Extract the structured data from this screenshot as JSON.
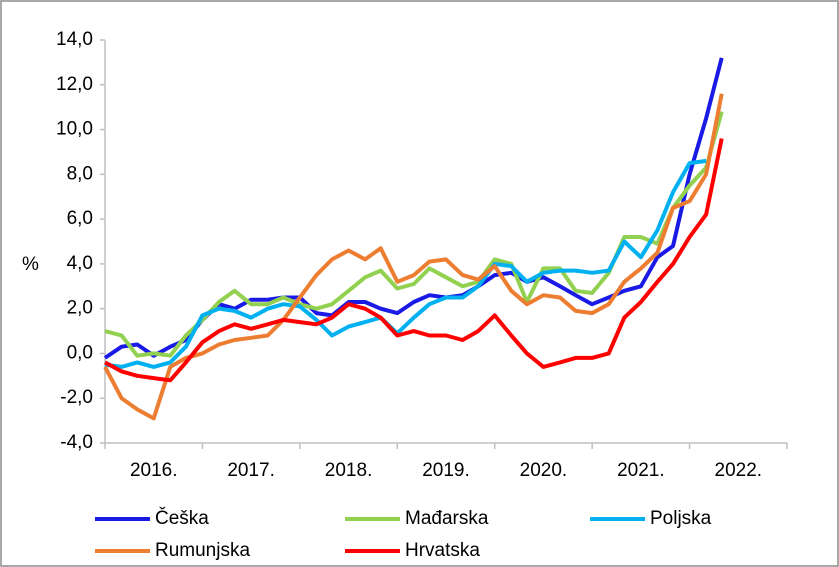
{
  "chart_data": {
    "type": "line",
    "ylabel": "%",
    "x": [
      2016,
      2016.17,
      2016.33,
      2016.5,
      2016.67,
      2016.83,
      2017,
      2017.17,
      2017.33,
      2017.5,
      2017.67,
      2017.83,
      2018,
      2018.17,
      2018.33,
      2018.5,
      2018.67,
      2018.83,
      2019,
      2019.17,
      2019.33,
      2019.5,
      2019.67,
      2019.83,
      2020,
      2020.17,
      2020.33,
      2020.5,
      2020.67,
      2020.83,
      2021,
      2021.17,
      2021.33,
      2021.5,
      2021.67,
      2021.83,
      2022,
      2022.17,
      2022.33
    ],
    "categories": [
      "2016.",
      "2017.",
      "2018.",
      "2019.",
      "2020.",
      "2021.",
      "2022."
    ],
    "xlim": [
      2016,
      2023
    ],
    "xticks": [
      2016,
      2017,
      2018,
      2019,
      2020,
      2021,
      2022,
      2023
    ],
    "ylim": [
      -4,
      14
    ],
    "yticks": [
      {
        "value": -4,
        "label": "-4,0"
      },
      {
        "value": -2,
        "label": "-2,0"
      },
      {
        "value": 0,
        "label": "0,0"
      },
      {
        "value": 2,
        "label": "2,0"
      },
      {
        "value": 4,
        "label": "4,0"
      },
      {
        "value": 6,
        "label": "6,0"
      },
      {
        "value": 8,
        "label": "8,0"
      },
      {
        "value": 10,
        "label": "10,0"
      },
      {
        "value": 12,
        "label": "12,0"
      },
      {
        "value": 14,
        "label": "14,0"
      }
    ],
    "series": [
      {
        "name": "Češka",
        "color": "#1a1ae6",
        "values": [
          -0.2,
          0.3,
          0.4,
          -0.1,
          0.3,
          0.6,
          1.5,
          2.2,
          2.0,
          2.4,
          2.4,
          2.5,
          2.5,
          1.8,
          1.7,
          2.3,
          2.3,
          2.0,
          1.8,
          2.3,
          2.6,
          2.5,
          2.6,
          3.0,
          3.5,
          3.6,
          3.2,
          3.4,
          3.0,
          2.6,
          2.2,
          2.5,
          2.8,
          3.0,
          4.3,
          4.8,
          8.0,
          10.5,
          13.2
        ]
      },
      {
        "name": "Mađarska",
        "color": "#92d050",
        "values": [
          1.0,
          0.8,
          -0.1,
          0.0,
          -0.1,
          0.8,
          1.5,
          2.3,
          2.8,
          2.2,
          2.2,
          2.5,
          2.2,
          2.0,
          2.2,
          2.8,
          3.4,
          3.7,
          2.9,
          3.1,
          3.8,
          3.4,
          3.0,
          3.2,
          4.2,
          4.0,
          2.3,
          3.8,
          3.8,
          2.8,
          2.7,
          3.6,
          5.2,
          5.2,
          4.9,
          6.5,
          7.5,
          8.3,
          10.8
        ]
      },
      {
        "name": "Poljska",
        "color": "#00b0f0",
        "values": [
          -0.5,
          -0.6,
          -0.4,
          -0.6,
          -0.4,
          0.3,
          1.7,
          2.0,
          1.9,
          1.6,
          2.0,
          2.2,
          2.1,
          1.5,
          0.8,
          1.2,
          1.4,
          1.6,
          0.9,
          1.6,
          2.2,
          2.5,
          2.5,
          3.0,
          4.0,
          3.9,
          3.2,
          3.6,
          3.7,
          3.7,
          3.6,
          3.7,
          5.0,
          4.3,
          5.5,
          7.2,
          8.5,
          8.6,
          null
        ]
      },
      {
        "name": "Rumunjska",
        "color": "#ed7d31",
        "values": [
          -0.6,
          -2.0,
          -2.5,
          -2.9,
          -0.6,
          -0.2,
          0.0,
          0.4,
          0.6,
          0.7,
          0.8,
          1.5,
          2.5,
          3.5,
          4.2,
          4.6,
          4.2,
          4.7,
          3.2,
          3.5,
          4.1,
          4.2,
          3.5,
          3.3,
          3.9,
          2.8,
          2.2,
          2.6,
          2.5,
          1.9,
          1.8,
          2.2,
          3.2,
          3.8,
          4.5,
          6.5,
          6.8,
          8.0,
          11.6
        ]
      },
      {
        "name": "Hrvatska",
        "color": "#ff0000",
        "values": [
          -0.4,
          -0.8,
          -1.0,
          -1.1,
          -1.2,
          -0.4,
          0.5,
          1.0,
          1.3,
          1.1,
          1.3,
          1.5,
          1.4,
          1.3,
          1.6,
          2.2,
          2.0,
          1.6,
          0.8,
          1.0,
          0.8,
          0.8,
          0.6,
          1.0,
          1.7,
          0.8,
          0.0,
          -0.6,
          -0.4,
          -0.2,
          -0.2,
          0.0,
          1.6,
          2.3,
          3.2,
          4.0,
          5.2,
          6.2,
          9.6
        ]
      }
    ]
  }
}
